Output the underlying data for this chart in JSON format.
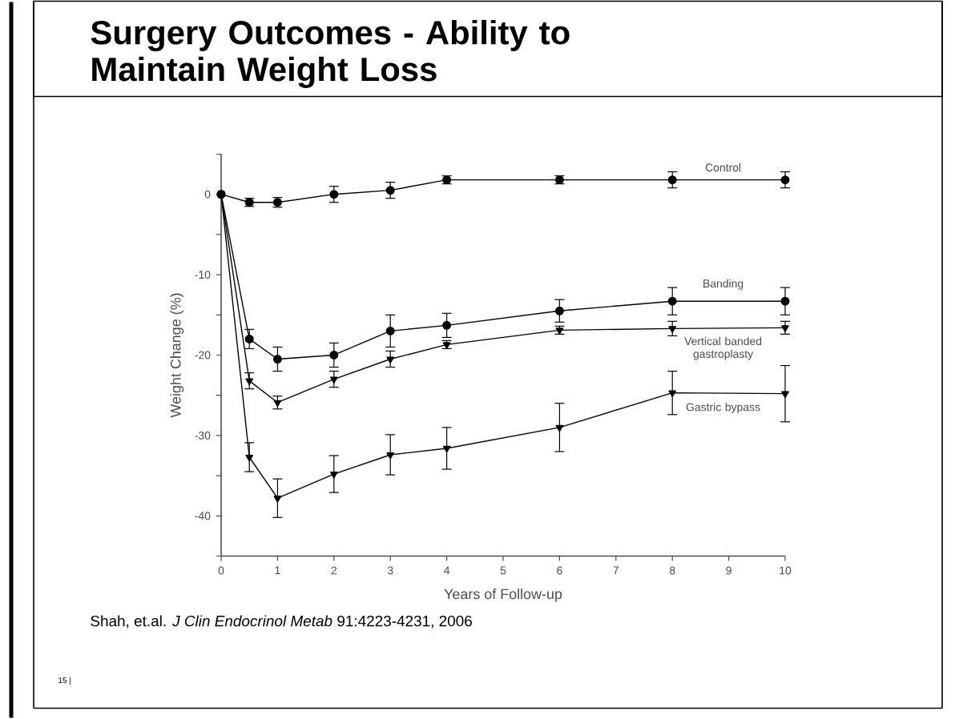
{
  "chart_data": {
    "type": "line",
    "title": "Surgery Outcomes - Ability to Maintain Weight Loss",
    "xlabel": "Years of Follow-up",
    "ylabel": "Weight Change (%)",
    "x": [
      0,
      0.5,
      1,
      2,
      3,
      4,
      6,
      8,
      10
    ],
    "xlim": [
      0,
      10
    ],
    "xticks": [
      0,
      1,
      2,
      3,
      4,
      5,
      6,
      7,
      8,
      9,
      10
    ],
    "ylim": [
      -45,
      5
    ],
    "yticks": [
      {
        "value": -45,
        "label": null
      },
      -40,
      {
        "value": -35,
        "label": null
      },
      -30,
      {
        "value": -25,
        "label": null
      },
      -20,
      {
        "value": -15,
        "label": null
      },
      -10,
      {
        "value": -5,
        "label": null
      },
      0,
      {
        "value": 5,
        "label": null
      }
    ],
    "grid": false,
    "series": [
      {
        "name": "Control",
        "color": "#000000",
        "marker": "circle",
        "values": [
          0,
          -1,
          -1,
          0,
          0.5,
          1.8,
          1.8,
          1.8,
          1.8
        ],
        "errors": [
          null,
          0.5,
          0.6,
          1,
          1,
          0.5,
          0.5,
          1,
          1
        ]
      },
      {
        "name": "Banding",
        "color": "#000000",
        "marker": "circle",
        "values": [
          0,
          -18,
          -20.5,
          -20,
          -17,
          -16.3,
          -14.5,
          -13.3,
          -13.3
        ],
        "errors": [
          null,
          1.2,
          1.5,
          1.5,
          2,
          1.5,
          1.4,
          1.7,
          1.7
        ]
      },
      {
        "name": "Vertical banded gastroplasty",
        "color": "#000000",
        "marker": "triangle",
        "values": [
          0,
          -23.2,
          -25.9,
          -23,
          -20.5,
          -18.7,
          -16.9,
          -16.7,
          -16.6
        ],
        "errors": [
          null,
          1,
          0.8,
          1,
          1,
          0.5,
          0.5,
          0.9,
          0.8
        ]
      },
      {
        "name": "Gastric bypass",
        "color": "#000000",
        "marker": "triangle",
        "values": [
          0,
          -32.7,
          -37.8,
          -34.8,
          -32.4,
          -31.6,
          -29,
          -24.7,
          -24.8
        ],
        "errors": [
          null,
          1.8,
          2.4,
          2.3,
          2.5,
          2.6,
          3,
          2.7,
          3.5
        ]
      }
    ],
    "annotations": [
      "Shah, et.al. *J Clin Endocrinol Metab* 91:4223-4231, 2006",
      "15 |"
    ]
  }
}
